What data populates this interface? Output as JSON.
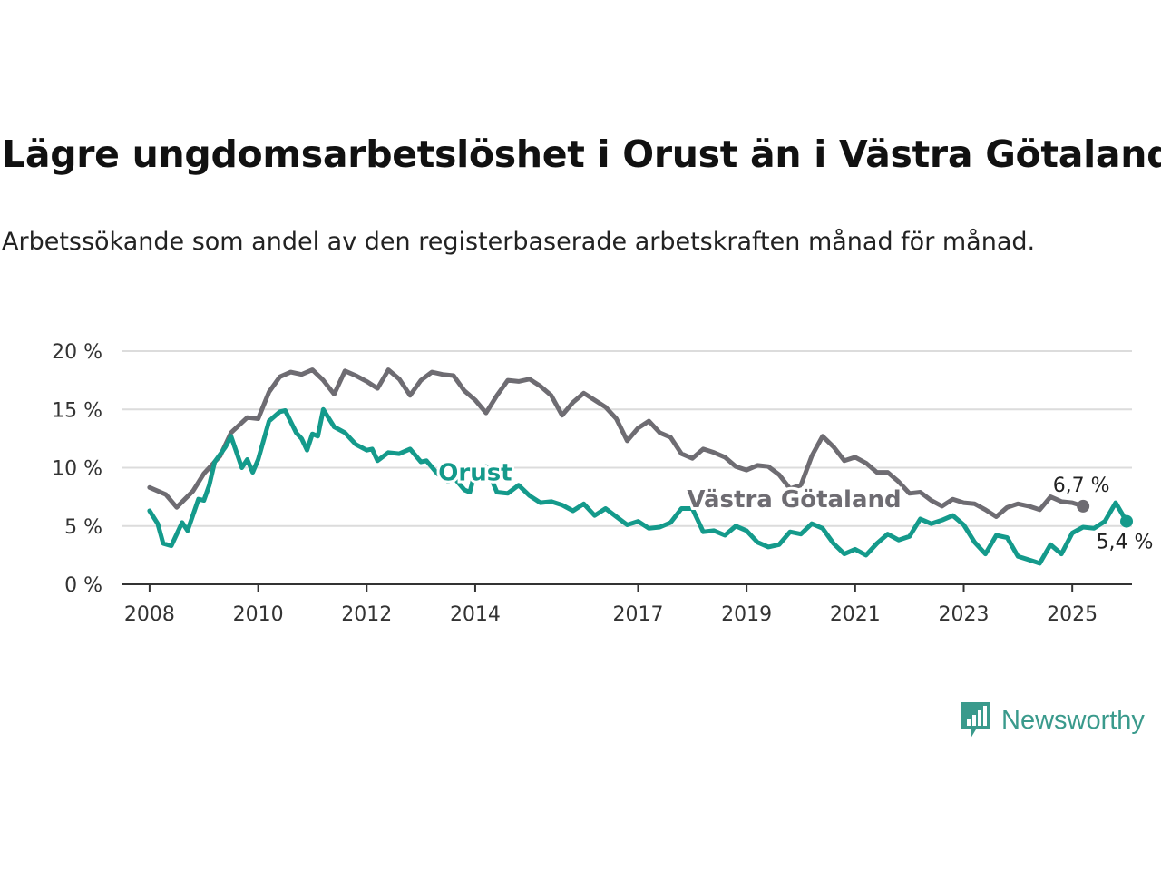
{
  "title": "Lägre ungdomsarbetslöshet i Orust än i Västra Götaland",
  "subtitle": "Arbetssökande som andel av den registerbaserade arbetskraften månad för månad.",
  "logo": {
    "text": "Newsworthy",
    "icon": "newsworthy-chart-icon",
    "color": "#3a9a8c"
  },
  "chart_data": {
    "type": "line",
    "x_ticks": [
      "2008",
      "2010",
      "2012",
      "2014",
      "2017",
      "2019",
      "2021",
      "2023",
      "2025"
    ],
    "y_ticks": [
      "0 %",
      "5 %",
      "10 %",
      "15 %",
      "20 %"
    ],
    "ylim": [
      0,
      20
    ],
    "xlim": [
      2007.5,
      2026.1
    ],
    "grid": true,
    "series": [
      {
        "name": "Västra Götaland",
        "color": "#6e6c72",
        "end_label": "6,7 %",
        "points": [
          [
            2008.0,
            8.3
          ],
          [
            2008.3,
            7.7
          ],
          [
            2008.5,
            6.6
          ],
          [
            2008.8,
            8.0
          ],
          [
            2009.0,
            9.5
          ],
          [
            2009.3,
            11.0
          ],
          [
            2009.5,
            13.0
          ],
          [
            2009.8,
            14.3
          ],
          [
            2010.0,
            14.2
          ],
          [
            2010.2,
            16.5
          ],
          [
            2010.4,
            17.8
          ],
          [
            2010.6,
            18.2
          ],
          [
            2010.8,
            18.0
          ],
          [
            2011.0,
            18.4
          ],
          [
            2011.2,
            17.5
          ],
          [
            2011.4,
            16.3
          ],
          [
            2011.6,
            18.3
          ],
          [
            2011.8,
            17.9
          ],
          [
            2012.0,
            17.4
          ],
          [
            2012.2,
            16.8
          ],
          [
            2012.4,
            18.4
          ],
          [
            2012.6,
            17.6
          ],
          [
            2012.8,
            16.2
          ],
          [
            2013.0,
            17.5
          ],
          [
            2013.2,
            18.2
          ],
          [
            2013.4,
            18.0
          ],
          [
            2013.6,
            17.9
          ],
          [
            2013.8,
            16.6
          ],
          [
            2014.0,
            15.8
          ],
          [
            2014.2,
            14.7
          ],
          [
            2014.4,
            16.2
          ],
          [
            2014.6,
            17.5
          ],
          [
            2014.8,
            17.4
          ],
          [
            2015.0,
            17.6
          ],
          [
            2015.2,
            17.0
          ],
          [
            2015.4,
            16.2
          ],
          [
            2015.6,
            14.5
          ],
          [
            2015.8,
            15.6
          ],
          [
            2016.0,
            16.4
          ],
          [
            2016.2,
            15.8
          ],
          [
            2016.4,
            15.2
          ],
          [
            2016.6,
            14.2
          ],
          [
            2016.8,
            12.3
          ],
          [
            2017.0,
            13.4
          ],
          [
            2017.2,
            14.0
          ],
          [
            2017.4,
            13.0
          ],
          [
            2017.6,
            12.6
          ],
          [
            2017.8,
            11.2
          ],
          [
            2018.0,
            10.8
          ],
          [
            2018.2,
            11.6
          ],
          [
            2018.4,
            11.3
          ],
          [
            2018.6,
            10.9
          ],
          [
            2018.8,
            10.1
          ],
          [
            2019.0,
            9.8
          ],
          [
            2019.2,
            10.2
          ],
          [
            2019.4,
            10.1
          ],
          [
            2019.6,
            9.4
          ],
          [
            2019.8,
            8.2
          ],
          [
            2020.0,
            8.5
          ],
          [
            2020.2,
            11.0
          ],
          [
            2020.4,
            12.7
          ],
          [
            2020.6,
            11.8
          ],
          [
            2020.8,
            10.6
          ],
          [
            2021.0,
            10.9
          ],
          [
            2021.2,
            10.4
          ],
          [
            2021.4,
            9.6
          ],
          [
            2021.6,
            9.6
          ],
          [
            2021.8,
            8.8
          ],
          [
            2022.0,
            7.8
          ],
          [
            2022.2,
            7.9
          ],
          [
            2022.4,
            7.2
          ],
          [
            2022.6,
            6.7
          ],
          [
            2022.8,
            7.3
          ],
          [
            2023.0,
            7.0
          ],
          [
            2023.2,
            6.9
          ],
          [
            2023.4,
            6.4
          ],
          [
            2023.6,
            5.8
          ],
          [
            2023.8,
            6.6
          ],
          [
            2024.0,
            6.9
          ],
          [
            2024.2,
            6.7
          ],
          [
            2024.4,
            6.4
          ],
          [
            2024.6,
            7.5
          ],
          [
            2024.8,
            7.1
          ],
          [
            2025.0,
            7.0
          ],
          [
            2025.2,
            6.7
          ]
        ]
      },
      {
        "name": "Orust",
        "color": "#149a8b",
        "end_label": "5,4 %",
        "points": [
          [
            2008.0,
            6.3
          ],
          [
            2008.15,
            5.2
          ],
          [
            2008.25,
            3.5
          ],
          [
            2008.4,
            3.3
          ],
          [
            2008.6,
            5.3
          ],
          [
            2008.7,
            4.6
          ],
          [
            2008.9,
            7.3
          ],
          [
            2009.0,
            7.2
          ],
          [
            2009.1,
            8.5
          ],
          [
            2009.2,
            10.5
          ],
          [
            2009.4,
            11.8
          ],
          [
            2009.5,
            12.7
          ],
          [
            2009.7,
            10.0
          ],
          [
            2009.8,
            10.7
          ],
          [
            2009.9,
            9.6
          ],
          [
            2010.0,
            10.7
          ],
          [
            2010.2,
            14.0
          ],
          [
            2010.4,
            14.8
          ],
          [
            2010.5,
            14.9
          ],
          [
            2010.7,
            13.0
          ],
          [
            2010.8,
            12.5
          ],
          [
            2010.9,
            11.5
          ],
          [
            2011.0,
            12.9
          ],
          [
            2011.1,
            12.7
          ],
          [
            2011.2,
            15.0
          ],
          [
            2011.4,
            13.5
          ],
          [
            2011.6,
            13.0
          ],
          [
            2011.8,
            12.0
          ],
          [
            2012.0,
            11.5
          ],
          [
            2012.1,
            11.6
          ],
          [
            2012.2,
            10.6
          ],
          [
            2012.4,
            11.3
          ],
          [
            2012.6,
            11.2
          ],
          [
            2012.8,
            11.6
          ],
          [
            2013.0,
            10.5
          ],
          [
            2013.1,
            10.6
          ],
          [
            2013.3,
            9.5
          ],
          [
            2013.5,
            8.8
          ],
          [
            2013.6,
            9.2
          ],
          [
            2013.8,
            8.1
          ],
          [
            2013.9,
            7.9
          ],
          [
            2014.0,
            9.7
          ],
          [
            2014.2,
            10.1
          ],
          [
            2014.4,
            7.9
          ],
          [
            2014.6,
            7.8
          ],
          [
            2014.8,
            8.5
          ],
          [
            2015.0,
            7.6
          ],
          [
            2015.2,
            7.0
          ],
          [
            2015.4,
            7.1
          ],
          [
            2015.6,
            6.8
          ],
          [
            2015.8,
            6.3
          ],
          [
            2016.0,
            6.9
          ],
          [
            2016.2,
            5.9
          ],
          [
            2016.4,
            6.5
          ],
          [
            2016.6,
            5.8
          ],
          [
            2016.8,
            5.1
          ],
          [
            2017.0,
            5.4
          ],
          [
            2017.2,
            4.8
          ],
          [
            2017.4,
            4.9
          ],
          [
            2017.6,
            5.3
          ],
          [
            2017.8,
            6.5
          ],
          [
            2018.0,
            6.5
          ],
          [
            2018.2,
            4.5
          ],
          [
            2018.4,
            4.6
          ],
          [
            2018.6,
            4.2
          ],
          [
            2018.8,
            5.0
          ],
          [
            2019.0,
            4.6
          ],
          [
            2019.2,
            3.6
          ],
          [
            2019.4,
            3.2
          ],
          [
            2019.6,
            3.4
          ],
          [
            2019.8,
            4.5
          ],
          [
            2020.0,
            4.3
          ],
          [
            2020.2,
            5.2
          ],
          [
            2020.4,
            4.8
          ],
          [
            2020.6,
            3.5
          ],
          [
            2020.8,
            2.6
          ],
          [
            2021.0,
            3.0
          ],
          [
            2021.2,
            2.5
          ],
          [
            2021.4,
            3.5
          ],
          [
            2021.6,
            4.3
          ],
          [
            2021.8,
            3.8
          ],
          [
            2022.0,
            4.1
          ],
          [
            2022.2,
            5.6
          ],
          [
            2022.4,
            5.2
          ],
          [
            2022.6,
            5.5
          ],
          [
            2022.8,
            5.9
          ],
          [
            2023.0,
            5.1
          ],
          [
            2023.2,
            3.6
          ],
          [
            2023.4,
            2.6
          ],
          [
            2023.6,
            4.2
          ],
          [
            2023.8,
            4.0
          ],
          [
            2024.0,
            2.4
          ],
          [
            2024.2,
            2.1
          ],
          [
            2024.4,
            1.8
          ],
          [
            2024.6,
            3.4
          ],
          [
            2024.8,
            2.6
          ],
          [
            2025.0,
            4.4
          ],
          [
            2025.2,
            4.9
          ],
          [
            2025.4,
            4.8
          ],
          [
            2025.6,
            5.4
          ],
          [
            2025.8,
            7.0
          ],
          [
            2026.0,
            5.4
          ]
        ]
      }
    ],
    "series_labels": [
      "Orust",
      "Västra Götaland"
    ]
  }
}
